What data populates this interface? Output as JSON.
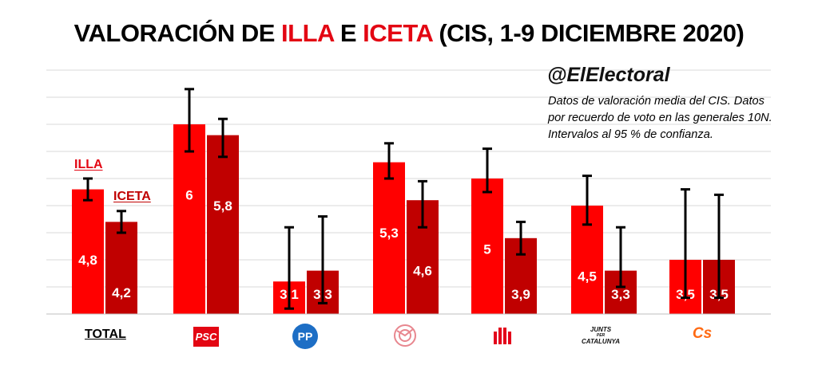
{
  "title": {
    "part1": "VALORACIÓN DE ",
    "name1": "ILLA",
    "part2": " E ",
    "name2": "ICETA",
    "part3": " (CIS, 1-9 DICIEMBRE 2020)"
  },
  "handle": "@ElElectoral",
  "note": "Datos de valoración media del CIS. Datos por recuerdo de voto en las generales 10N. Intervalos al 95 % de confianza.",
  "categories": {
    "total": "TOTAL",
    "psc_logo": "PSC",
    "pp_logo": "PP",
    "junts_logo_line1": "JUNTS",
    "junts_logo_line2": "PER",
    "junts_logo_line3": "CATALUNYA",
    "cs_logo": "Cs"
  },
  "colors": {
    "illa": "#ff0000",
    "iceta": "#c00000",
    "title_red": "#e30613",
    "grid": "#d9d9d9",
    "psc": "#e30613",
    "pp": "#1d6ec5",
    "comuns": "#e8878f",
    "erc": "#e3001b",
    "cs": "#ff6a13"
  },
  "icons": [
    "psc-logo",
    "pp-logo",
    "comuns-logo",
    "erc-logo",
    "junts-logo",
    "cs-logo"
  ],
  "chart_data": {
    "type": "bar",
    "title": "VALORACIÓN DE ILLA E ICETA (CIS, 1-9 DICIEMBRE 2020)",
    "categories": [
      "TOTAL",
      "PSC",
      "PP",
      "En Comú Podem",
      "ERC",
      "Junts per Catalunya",
      "Cs"
    ],
    "series": [
      {
        "name": "ILLA",
        "values": [
          4.8,
          6,
          3.1,
          5.3,
          5,
          4.5,
          3.5
        ],
        "labels": [
          "4,8",
          "6",
          "3,1",
          "5,3",
          "5",
          "4,5",
          "3,5"
        ],
        "ci_low": [
          4.6,
          5.5,
          2.6,
          5.0,
          4.75,
          4.15,
          2.8
        ],
        "ci_high": [
          5.0,
          6.65,
          4.1,
          5.65,
          5.55,
          5.05,
          4.8
        ]
      },
      {
        "name": "ICETA",
        "values": [
          4.2,
          5.8,
          3.3,
          4.6,
          3.9,
          3.3,
          3.5
        ],
        "labels": [
          "4,2",
          "5,8",
          "3,3",
          "4,6",
          "3,9",
          "3,3",
          "3,5"
        ],
        "ci_low": [
          4.0,
          5.4,
          2.7,
          4.1,
          3.6,
          3.0,
          2.8
        ],
        "ci_high": [
          4.4,
          6.1,
          4.3,
          4.95,
          4.2,
          4.1,
          4.7
        ]
      }
    ],
    "ylim": [
      2.5,
      7.0
    ],
    "y_gridlines": [
      2.5,
      3.0,
      3.5,
      4.0,
      4.5,
      5.0,
      5.5,
      6.0,
      6.5,
      7.0
    ],
    "error_bars": "95% confidence interval",
    "legend": "inline labels above TOTAL bars",
    "grid": true
  }
}
